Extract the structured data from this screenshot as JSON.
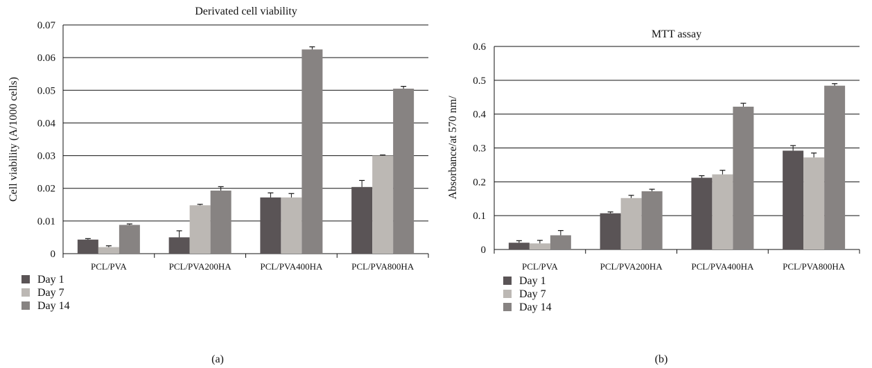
{
  "chart_data": [
    {
      "panel_label": "(a)",
      "type": "bar",
      "title": "Derivated cell viability",
      "xlabel": "",
      "ylabel": "Cell viability (A/1000 cells)",
      "ylim": [
        0,
        0.07
      ],
      "yticks": [
        "0",
        "0.01",
        "0.02",
        "0.03",
        "0.04",
        "0.05",
        "0.06",
        "0.07"
      ],
      "grid": true,
      "legend_position": "bottom-left",
      "categories": [
        "PCL/PVA",
        "PCL/PVA200HA",
        "PCL/PVA400HA",
        "PCL/PVA800HA"
      ],
      "series": [
        {
          "name": "Day 1",
          "values": [
            0.0043,
            0.005,
            0.0172,
            0.0204
          ],
          "errors": [
            0.0003,
            0.002,
            0.0014,
            0.002
          ]
        },
        {
          "name": "Day 7",
          "values": [
            0.002,
            0.0148,
            0.0172,
            0.03
          ],
          "errors": [
            0.0004,
            0.0003,
            0.0012,
            0.0002
          ]
        },
        {
          "name": "Day 14",
          "values": [
            0.0088,
            0.0193,
            0.0625,
            0.0505
          ],
          "errors": [
            0.0003,
            0.0012,
            0.0008,
            0.0007
          ]
        }
      ]
    },
    {
      "panel_label": "(b)",
      "type": "bar",
      "title": "MTT assay",
      "xlabel": "",
      "ylabel": "Absorbance/at 570 nm/",
      "ylim": [
        0,
        0.6
      ],
      "yticks": [
        "0",
        "0.1",
        "0.2",
        "0.3",
        "0.4",
        "0.5",
        "0.6"
      ],
      "grid": true,
      "legend_position": "bottom-left",
      "categories": [
        "PCL/PVA",
        "PCL/PVA200HA",
        "PCL/PVA400HA",
        "PCL/PVA800HA"
      ],
      "series": [
        {
          "name": "Day 1",
          "values": [
            0.02,
            0.107,
            0.212,
            0.292
          ],
          "errors": [
            0.006,
            0.004,
            0.006,
            0.015
          ]
        },
        {
          "name": "Day 7",
          "values": [
            0.018,
            0.152,
            0.222,
            0.272
          ],
          "errors": [
            0.009,
            0.008,
            0.012,
            0.013
          ]
        },
        {
          "name": "Day 14",
          "values": [
            0.042,
            0.172,
            0.422,
            0.484
          ],
          "errors": [
            0.014,
            0.006,
            0.01,
            0.006
          ]
        }
      ]
    }
  ],
  "colors": {
    "series": [
      "#5a5456",
      "#bcb8b4",
      "#878382"
    ],
    "grid": "#111111",
    "error_bar": "#111111"
  }
}
